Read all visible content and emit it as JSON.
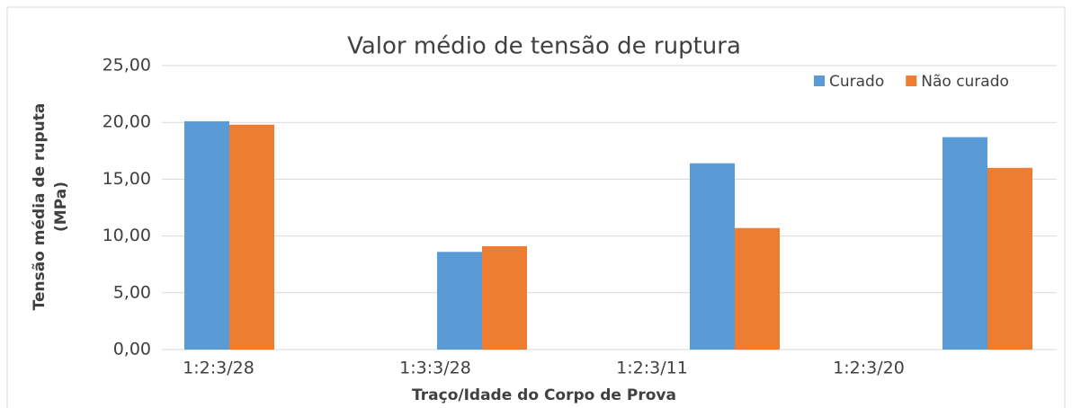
{
  "chart_data": {
    "type": "bar",
    "title": "Valor médio de tensão de ruptura",
    "xlabel": "Traço/Idade do Corpo de Prova",
    "ylabel": [
      "Tensão média de ruputa",
      "(MPa)"
    ],
    "categories": [
      "1:2:3/28",
      "1:3:3/28",
      "1:2:3/11",
      "1:2:3/20"
    ],
    "series": [
      {
        "name": "Curado",
        "color": "#5b9bd5",
        "values": [
          20.1,
          8.6,
          16.4,
          18.7
        ]
      },
      {
        "name": "Não curado",
        "color": "#ed7d31",
        "values": [
          19.8,
          9.1,
          10.7,
          16.0
        ]
      }
    ],
    "ylim": [
      0,
      25
    ],
    "yticks": [
      {
        "value": 0,
        "label": "0,00"
      },
      {
        "value": 5,
        "label": "5,00"
      },
      {
        "value": 10,
        "label": "10,00"
      },
      {
        "value": 15,
        "label": "15,00"
      },
      {
        "value": 20,
        "label": "20,00"
      },
      {
        "value": 25,
        "label": "25,00"
      }
    ],
    "grid": true,
    "legend": "top-right"
  }
}
